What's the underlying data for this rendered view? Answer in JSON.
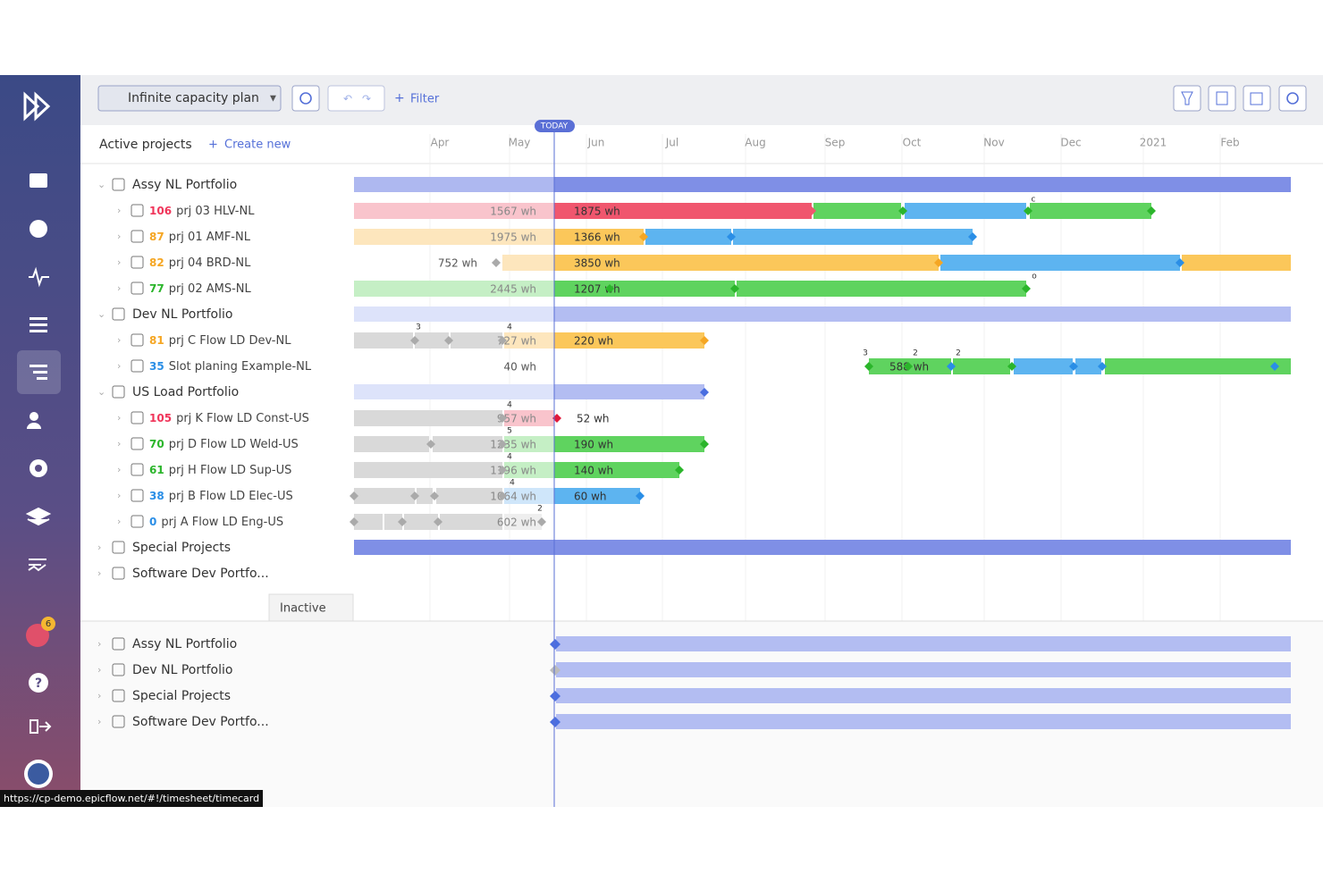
{
  "toolbar": {
    "plan": "Infinite capacity plan",
    "filter": "Filter"
  },
  "header": {
    "title": "Active projects",
    "create": "Create new",
    "today": "TODAY",
    "months": [
      "Apr",
      "May",
      "Jun",
      "Jul",
      "Aug",
      "Sep",
      "Oct",
      "Nov",
      "Dec",
      "2021",
      "Feb"
    ]
  },
  "active": [
    {
      "name": "Assy NL Portfolio"
    },
    {
      "priority": 106,
      "name": "prj 03 HLV-NL",
      "left": "1567 wh",
      "right": "1875 wh",
      "marks": [
        "c"
      ]
    },
    {
      "priority": 87,
      "name": "prj 01 AMF-NL",
      "left": "1975 wh",
      "right": "1366 wh"
    },
    {
      "priority": 82,
      "name": "prj 04 BRD-NL",
      "left": "752 wh",
      "right": "3850 wh"
    },
    {
      "priority": 77,
      "name": "prj 02 AMS-NL",
      "left": "2445 wh",
      "right": "1207 wh",
      "marks": [
        "o"
      ]
    },
    {
      "name": "Dev NL Portfolio"
    },
    {
      "priority": 81,
      "name": "prj C Flow LD Dev-NL",
      "left": "727 wh",
      "right": "220 wh",
      "marks": [
        "3",
        "4"
      ]
    },
    {
      "priority": 35,
      "name": "Slot planing Example-NL",
      "left": "40 wh",
      "right": "588 wh",
      "marks": [
        "3",
        "2",
        "2"
      ]
    },
    {
      "name": "US Load Portfolio"
    },
    {
      "priority": 105,
      "name": "prj K Flow LD Const-US",
      "left": "957 wh",
      "right": "52 wh",
      "marks": [
        "4"
      ]
    },
    {
      "priority": 70,
      "name": "prj D Flow LD Weld-US",
      "left": "1235 wh",
      "right": "190 wh",
      "marks": [
        "5"
      ]
    },
    {
      "priority": 61,
      "name": "prj H Flow LD Sup-US",
      "left": "1196 wh",
      "right": "140 wh",
      "marks": [
        "4"
      ]
    },
    {
      "priority": 38,
      "name": "prj B Flow LD Elec-US",
      "left": "1064 wh",
      "right": "60 wh",
      "marks": [
        "4"
      ]
    },
    {
      "priority": 0,
      "name": "prj A Flow LD Eng-US",
      "left": "602 wh",
      "marks": [
        "2"
      ]
    },
    {
      "name": "Special Projects"
    },
    {
      "name": "Software Dev Portfo..."
    }
  ],
  "inactive_tab": "Inactive",
  "inactive": [
    {
      "name": "Assy NL Portfolio"
    },
    {
      "name": "Dev NL Portfolio"
    },
    {
      "name": "Special Projects"
    },
    {
      "name": "Software Dev Portfo..."
    }
  ],
  "badge": "6",
  "status_url": "https://cp-demo.epicflow.net/#!/timesheet/timecard"
}
